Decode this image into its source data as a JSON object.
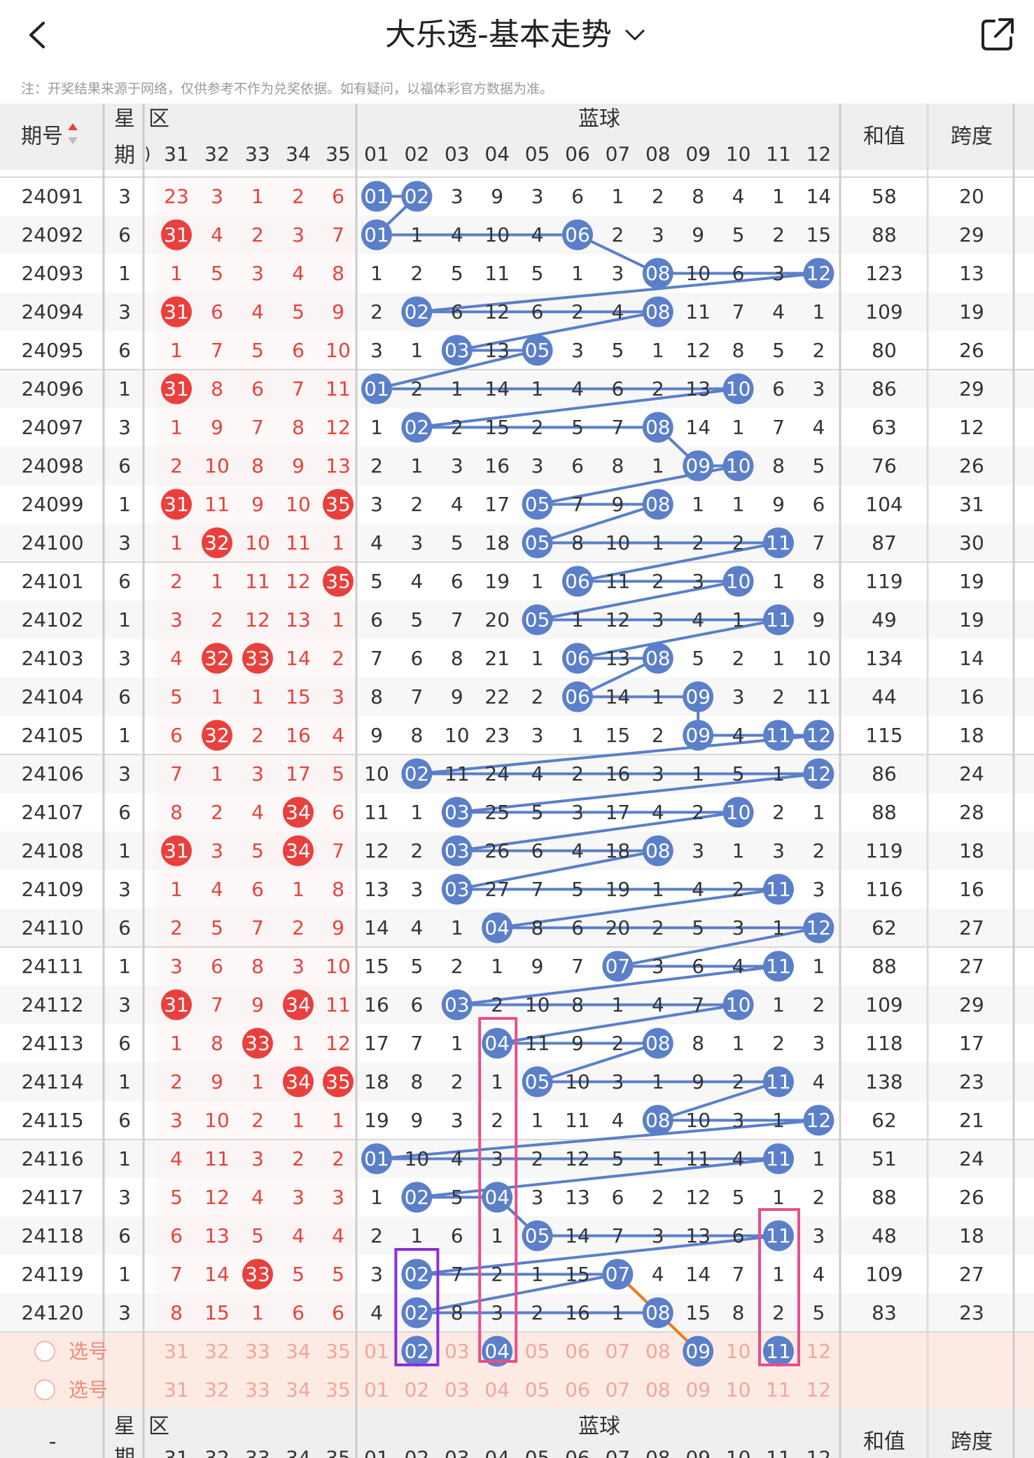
{
  "header": {
    "back_icon": "chevron-left-icon",
    "title": "大乐透-基本走势",
    "title_dropdown_icon": "chevron-down-icon",
    "share_icon": "share-external-icon",
    "disclaimer": "注：开奖结果来源于网络，仅供参考不作为兑奖依据。如有疑问，以福体彩官方数据为准。"
  },
  "table_header": {
    "issue": "期号",
    "sort_icon": "sort-arrows-icon",
    "weekday_top": "星",
    "weekday_bottom": "期",
    "front_zone": "区",
    "front_cols": [
      "31",
      "32",
      "33",
      "34",
      "35"
    ],
    "blue_zone": "蓝球",
    "blue_cols": [
      "01",
      "02",
      "03",
      "04",
      "05",
      "06",
      "07",
      "08",
      "09",
      "10",
      "11",
      "12"
    ],
    "sum": "和值",
    "span": "跨度"
  },
  "rows": [
    {
      "issue": "24091",
      "week": "3",
      "front": [
        "23",
        "3",
        "1",
        "2",
        "6"
      ],
      "blue": [
        "01",
        "02",
        "3",
        "9",
        "3",
        "6",
        "1",
        "2",
        "8",
        "4",
        "1",
        "14"
      ],
      "sum": "58",
      "span": "20"
    },
    {
      "issue": "24092",
      "week": "6",
      "front": [
        "31",
        "4",
        "2",
        "3",
        "7"
      ],
      "blue": [
        "01",
        "1",
        "4",
        "10",
        "4",
        "06",
        "2",
        "3",
        "9",
        "5",
        "2",
        "15"
      ],
      "sum": "88",
      "span": "29"
    },
    {
      "issue": "24093",
      "week": "1",
      "front": [
        "1",
        "5",
        "3",
        "4",
        "8"
      ],
      "blue": [
        "1",
        "2",
        "5",
        "11",
        "5",
        "1",
        "3",
        "08",
        "10",
        "6",
        "3",
        "12"
      ],
      "sum": "123",
      "span": "13"
    },
    {
      "issue": "24094",
      "week": "3",
      "front": [
        "31",
        "6",
        "4",
        "5",
        "9"
      ],
      "blue": [
        "2",
        "02",
        "6",
        "12",
        "6",
        "2",
        "4",
        "08",
        "11",
        "7",
        "4",
        "1"
      ],
      "sum": "109",
      "span": "19"
    },
    {
      "issue": "24095",
      "week": "6",
      "front": [
        "1",
        "7",
        "5",
        "6",
        "10"
      ],
      "blue": [
        "3",
        "1",
        "03",
        "13",
        "05",
        "3",
        "5",
        "1",
        "12",
        "8",
        "5",
        "2"
      ],
      "sum": "80",
      "span": "26"
    },
    {
      "issue": "24096",
      "week": "1",
      "front": [
        "31",
        "8",
        "6",
        "7",
        "11"
      ],
      "blue": [
        "01",
        "2",
        "1",
        "14",
        "1",
        "4",
        "6",
        "2",
        "13",
        "10",
        "6",
        "3"
      ],
      "sum": "86",
      "span": "29"
    },
    {
      "issue": "24097",
      "week": "3",
      "front": [
        "1",
        "9",
        "7",
        "8",
        "12"
      ],
      "blue": [
        "1",
        "02",
        "2",
        "15",
        "2",
        "5",
        "7",
        "08",
        "14",
        "1",
        "7",
        "4"
      ],
      "sum": "63",
      "span": "12"
    },
    {
      "issue": "24098",
      "week": "6",
      "front": [
        "2",
        "10",
        "8",
        "9",
        "13"
      ],
      "blue": [
        "2",
        "1",
        "3",
        "16",
        "3",
        "6",
        "8",
        "1",
        "09",
        "10",
        "8",
        "5"
      ],
      "sum": "76",
      "span": "26"
    },
    {
      "issue": "24099",
      "week": "1",
      "front": [
        "31",
        "11",
        "9",
        "10",
        "35"
      ],
      "blue": [
        "3",
        "2",
        "4",
        "17",
        "05",
        "7",
        "9",
        "08",
        "1",
        "1",
        "9",
        "6"
      ],
      "sum": "104",
      "span": "31"
    },
    {
      "issue": "24100",
      "week": "3",
      "front": [
        "1",
        "32",
        "10",
        "11",
        "1"
      ],
      "blue": [
        "4",
        "3",
        "5",
        "18",
        "05",
        "8",
        "10",
        "1",
        "2",
        "2",
        "11",
        "7"
      ],
      "sum": "87",
      "span": "30"
    },
    {
      "issue": "24101",
      "week": "6",
      "front": [
        "2",
        "1",
        "11",
        "12",
        "35"
      ],
      "blue": [
        "5",
        "4",
        "6",
        "19",
        "1",
        "06",
        "11",
        "2",
        "3",
        "10",
        "1",
        "8"
      ],
      "sum": "119",
      "span": "19"
    },
    {
      "issue": "24102",
      "week": "1",
      "front": [
        "3",
        "2",
        "12",
        "13",
        "1"
      ],
      "blue": [
        "6",
        "5",
        "7",
        "20",
        "05",
        "1",
        "12",
        "3",
        "4",
        "1",
        "11",
        "9"
      ],
      "sum": "49",
      "span": "19"
    },
    {
      "issue": "24103",
      "week": "3",
      "front": [
        "4",
        "32",
        "33",
        "14",
        "2"
      ],
      "blue": [
        "7",
        "6",
        "8",
        "21",
        "1",
        "06",
        "13",
        "08",
        "5",
        "2",
        "1",
        "10"
      ],
      "sum": "134",
      "span": "14"
    },
    {
      "issue": "24104",
      "week": "6",
      "front": [
        "5",
        "1",
        "1",
        "15",
        "3"
      ],
      "blue": [
        "8",
        "7",
        "9",
        "22",
        "2",
        "06",
        "14",
        "1",
        "09",
        "3",
        "2",
        "11"
      ],
      "sum": "44",
      "span": "16"
    },
    {
      "issue": "24105",
      "week": "1",
      "front": [
        "6",
        "32",
        "2",
        "16",
        "4"
      ],
      "blue": [
        "9",
        "8",
        "10",
        "23",
        "3",
        "1",
        "15",
        "2",
        "09",
        "4",
        "11",
        "12"
      ],
      "sum": "115",
      "span": "18"
    },
    {
      "issue": "24106",
      "week": "3",
      "front": [
        "7",
        "1",
        "3",
        "17",
        "5"
      ],
      "blue": [
        "10",
        "02",
        "11",
        "24",
        "4",
        "2",
        "16",
        "3",
        "1",
        "5",
        "1",
        "12"
      ],
      "sum": "86",
      "span": "24"
    },
    {
      "issue": "24107",
      "week": "6",
      "front": [
        "8",
        "2",
        "4",
        "34",
        "6"
      ],
      "blue": [
        "11",
        "1",
        "03",
        "25",
        "5",
        "3",
        "17",
        "4",
        "2",
        "10",
        "2",
        "1"
      ],
      "sum": "88",
      "span": "28"
    },
    {
      "issue": "24108",
      "week": "1",
      "front": [
        "31",
        "3",
        "5",
        "34",
        "7"
      ],
      "blue": [
        "12",
        "2",
        "03",
        "26",
        "6",
        "4",
        "18",
        "08",
        "3",
        "1",
        "3",
        "2"
      ],
      "sum": "119",
      "span": "18"
    },
    {
      "issue": "24109",
      "week": "3",
      "front": [
        "1",
        "4",
        "6",
        "1",
        "8"
      ],
      "blue": [
        "13",
        "3",
        "03",
        "27",
        "7",
        "5",
        "19",
        "1",
        "4",
        "2",
        "11",
        "3"
      ],
      "sum": "116",
      "span": "16"
    },
    {
      "issue": "24110",
      "week": "6",
      "front": [
        "2",
        "5",
        "7",
        "2",
        "9"
      ],
      "blue": [
        "14",
        "4",
        "1",
        "04",
        "8",
        "6",
        "20",
        "2",
        "5",
        "3",
        "1",
        "12"
      ],
      "sum": "62",
      "span": "27"
    },
    {
      "issue": "24111",
      "week": "1",
      "front": [
        "3",
        "6",
        "8",
        "3",
        "10"
      ],
      "blue": [
        "15",
        "5",
        "2",
        "1",
        "9",
        "7",
        "07",
        "3",
        "6",
        "4",
        "11",
        "1"
      ],
      "sum": "88",
      "span": "27"
    },
    {
      "issue": "24112",
      "week": "3",
      "front": [
        "31",
        "7",
        "9",
        "34",
        "11"
      ],
      "blue": [
        "16",
        "6",
        "03",
        "2",
        "10",
        "8",
        "1",
        "4",
        "7",
        "10",
        "1",
        "2"
      ],
      "sum": "109",
      "span": "29"
    },
    {
      "issue": "24113",
      "week": "6",
      "front": [
        "1",
        "8",
        "33",
        "1",
        "12"
      ],
      "blue": [
        "17",
        "7",
        "1",
        "04",
        "11",
        "9",
        "2",
        "08",
        "8",
        "1",
        "2",
        "3"
      ],
      "sum": "118",
      "span": "17"
    },
    {
      "issue": "24114",
      "week": "1",
      "front": [
        "2",
        "9",
        "1",
        "34",
        "35"
      ],
      "blue": [
        "18",
        "8",
        "2",
        "1",
        "05",
        "10",
        "3",
        "1",
        "9",
        "2",
        "11",
        "4"
      ],
      "sum": "138",
      "span": "23"
    },
    {
      "issue": "24115",
      "week": "6",
      "front": [
        "3",
        "10",
        "2",
        "1",
        "1"
      ],
      "blue": [
        "19",
        "9",
        "3",
        "2",
        "1",
        "11",
        "4",
        "08",
        "10",
        "3",
        "1",
        "12"
      ],
      "sum": "62",
      "span": "21"
    },
    {
      "issue": "24116",
      "week": "1",
      "front": [
        "4",
        "11",
        "3",
        "2",
        "2"
      ],
      "blue": [
        "01",
        "10",
        "4",
        "3",
        "2",
        "12",
        "5",
        "1",
        "11",
        "4",
        "11",
        "1"
      ],
      "sum": "51",
      "span": "24"
    },
    {
      "issue": "24117",
      "week": "3",
      "front": [
        "5",
        "12",
        "4",
        "3",
        "3"
      ],
      "blue": [
        "1",
        "02",
        "5",
        "04",
        "3",
        "13",
        "6",
        "2",
        "12",
        "5",
        "1",
        "2"
      ],
      "sum": "88",
      "span": "26"
    },
    {
      "issue": "24118",
      "week": "6",
      "front": [
        "6",
        "13",
        "5",
        "4",
        "4"
      ],
      "blue": [
        "2",
        "1",
        "6",
        "1",
        "05",
        "14",
        "7",
        "3",
        "13",
        "6",
        "11",
        "3"
      ],
      "sum": "48",
      "span": "18"
    },
    {
      "issue": "24119",
      "week": "1",
      "front": [
        "7",
        "14",
        "33",
        "5",
        "5"
      ],
      "blue": [
        "3",
        "02",
        "7",
        "2",
        "1",
        "15",
        "07",
        "4",
        "14",
        "7",
        "1",
        "4"
      ],
      "sum": "109",
      "span": "27"
    },
    {
      "issue": "24120",
      "week": "3",
      "front": [
        "8",
        "15",
        "1",
        "6",
        "6"
      ],
      "blue": [
        "4",
        "02",
        "8",
        "3",
        "2",
        "16",
        "1",
        "08",
        "15",
        "8",
        "2",
        "5"
      ],
      "sum": "83",
      "span": "23"
    }
  ],
  "pick_rows": [
    {
      "label": "选号",
      "front": [
        "31",
        "32",
        "33",
        "34",
        "35"
      ],
      "blue": [
        "01",
        "02",
        "03",
        "04",
        "05",
        "06",
        "07",
        "08",
        "09",
        "10",
        "11",
        "12"
      ],
      "selected_blue": [
        "02",
        "04",
        "09",
        "11"
      ]
    },
    {
      "label": "选号",
      "front": [
        "31",
        "32",
        "33",
        "34",
        "35"
      ],
      "blue": [
        "01",
        "02",
        "03",
        "04",
        "05",
        "06",
        "07",
        "08",
        "09",
        "10",
        "11",
        "12"
      ],
      "selected_blue": []
    }
  ],
  "footer_header": {
    "issue": "-",
    "weekday_top": "星",
    "weekday_bottom": "期",
    "front_zone": "区",
    "blue_zone": "蓝球",
    "sum": "和值",
    "span": "跨度"
  },
  "colors": {
    "red": "#e8413d",
    "blue_ball": "#5b7fc9",
    "line": "#5b7fc9",
    "pink_box": "#e6508a",
    "purple_box": "#8a2fd8",
    "orange_line": "#f07a10",
    "pick_bg": "#fdebe3"
  }
}
